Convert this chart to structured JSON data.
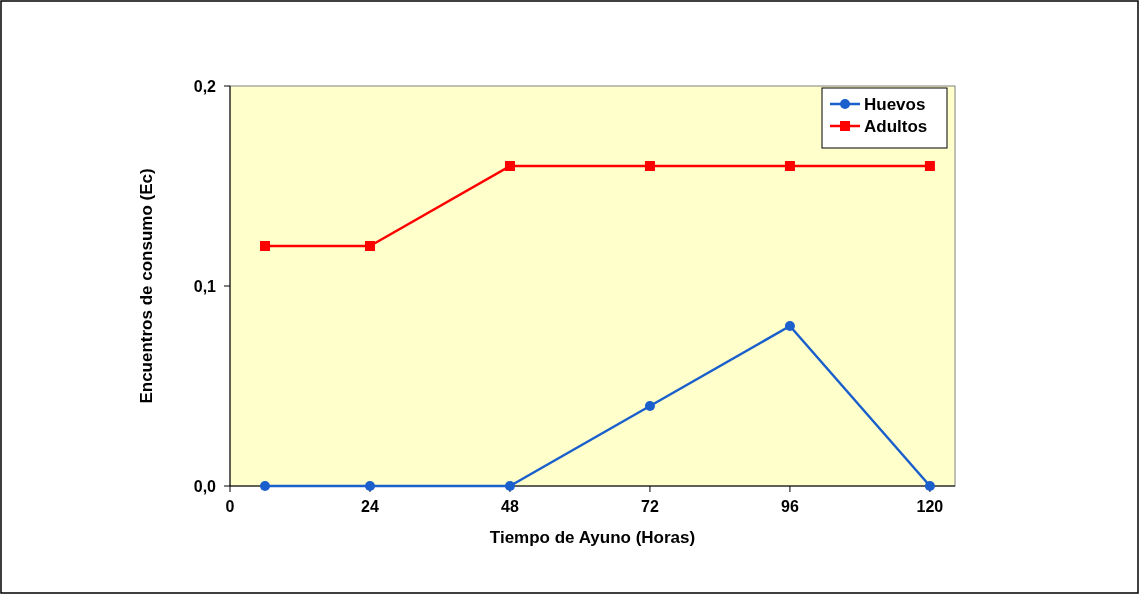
{
  "chart_data": {
    "type": "line",
    "xlabel": "Tiempo de Ayuno (Horas)",
    "ylabel": "Encuentros de consumo (Ec)",
    "x": [
      6,
      24,
      48,
      72,
      96,
      120
    ],
    "series": [
      {
        "name": "Huevos",
        "color": "#1a5fcc",
        "marker": "circle",
        "values": [
          0,
          0,
          0,
          0.04,
          0.08,
          0
        ]
      },
      {
        "name": "Adultos",
        "color": "#ff0000",
        "marker": "square",
        "values": [
          0.12,
          0.12,
          0.16,
          0.16,
          0.16,
          0.16
        ]
      }
    ],
    "xlim": [
      0,
      124.3
    ],
    "xticks": [
      0,
      24,
      48,
      72,
      96,
      120
    ],
    "ylim": [
      0,
      0.2
    ],
    "yticks": [
      {
        "value": 0,
        "label": "0,0"
      },
      {
        "value": 0.1,
        "label": "0,1"
      },
      {
        "value": 0.2,
        "label": "0,2"
      }
    ],
    "legend": "top right",
    "grid": false
  }
}
